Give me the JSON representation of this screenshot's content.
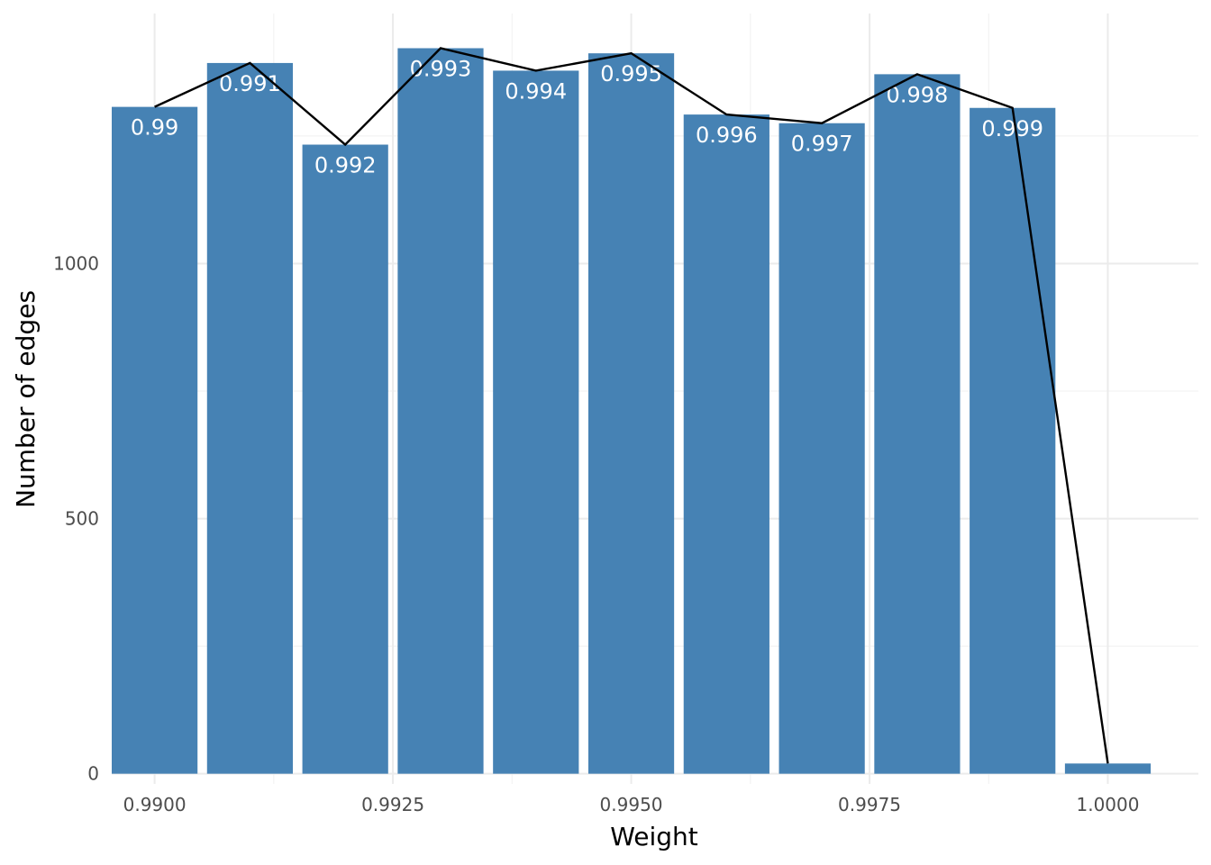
{
  "chart_data": {
    "type": "bar",
    "xlabel": "Weight",
    "ylabel": "Number of edges",
    "bar_color": "#4682b4",
    "line_color": "#000000",
    "xlim": [
      0.98955,
      1.00095
    ],
    "ylim": [
      -20,
      1490
    ],
    "x_ticks": [
      0.99,
      0.9925,
      0.995,
      0.9975,
      1.0
    ],
    "x_tick_labels": [
      "0.9900",
      "0.9925",
      "0.9950",
      "0.9975",
      "1.0000"
    ],
    "x_minor_ticks": [
      0.99125,
      0.99375,
      0.99625,
      0.99875
    ],
    "y_ticks": [
      0,
      500,
      1000
    ],
    "y_tick_labels": [
      "0",
      "500",
      "1000"
    ],
    "y_minor_ticks": [
      250,
      750,
      1250
    ],
    "bar_width": 0.0009,
    "x": [
      0.99,
      0.991,
      0.992,
      0.993,
      0.994,
      0.995,
      0.996,
      0.997,
      0.998,
      0.999,
      1.0
    ],
    "values": [
      1307,
      1393,
      1233,
      1422,
      1378,
      1412,
      1292,
      1275,
      1371,
      1305,
      20
    ],
    "labels": [
      "0.99",
      "0.991",
      "0.992",
      "0.993",
      "0.994",
      "0.995",
      "0.996",
      "0.997",
      "0.998",
      "0.999",
      ""
    ],
    "grid": true
  }
}
